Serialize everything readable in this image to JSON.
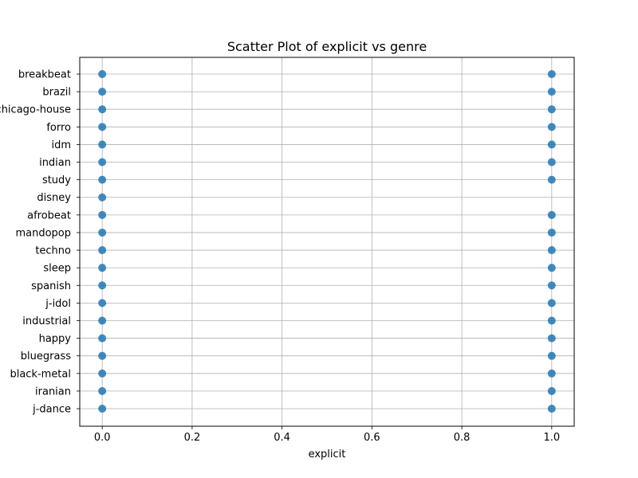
{
  "chart_data": {
    "type": "scatter",
    "title": "Scatter Plot of explicit vs genre",
    "xlabel": "explicit",
    "ylabel": "",
    "xlim": [
      -0.05,
      1.05
    ],
    "x_ticks": [
      0.0,
      0.2,
      0.4,
      0.6,
      0.8,
      1.0
    ],
    "x_tick_labels": [
      "0.0",
      "0.2",
      "0.4",
      "0.6",
      "0.8",
      "1.0"
    ],
    "categories": [
      "breakbeat",
      "brazil",
      "chicago-house",
      "forro",
      "idm",
      "indian",
      "study",
      "disney",
      "afrobeat",
      "mandopop",
      "techno",
      "sleep",
      "spanish",
      "j-idol",
      "industrial",
      "happy",
      "bluegrass",
      "black-metal",
      "iranian",
      "j-dance"
    ],
    "grid": true,
    "legend": "none",
    "point_color": "#1f77b4",
    "points": [
      {
        "x": 0,
        "y": "breakbeat"
      },
      {
        "x": 1,
        "y": "breakbeat"
      },
      {
        "x": 0,
        "y": "brazil"
      },
      {
        "x": 1,
        "y": "brazil"
      },
      {
        "x": 0,
        "y": "chicago-house"
      },
      {
        "x": 1,
        "y": "chicago-house"
      },
      {
        "x": 0,
        "y": "forro"
      },
      {
        "x": 1,
        "y": "forro"
      },
      {
        "x": 0,
        "y": "idm"
      },
      {
        "x": 1,
        "y": "idm"
      },
      {
        "x": 0,
        "y": "indian"
      },
      {
        "x": 1,
        "y": "indian"
      },
      {
        "x": 0,
        "y": "study"
      },
      {
        "x": 1,
        "y": "study"
      },
      {
        "x": 0,
        "y": "disney"
      },
      {
        "x": 0,
        "y": "afrobeat"
      },
      {
        "x": 1,
        "y": "afrobeat"
      },
      {
        "x": 0,
        "y": "mandopop"
      },
      {
        "x": 1,
        "y": "mandopop"
      },
      {
        "x": 0,
        "y": "techno"
      },
      {
        "x": 1,
        "y": "techno"
      },
      {
        "x": 0,
        "y": "sleep"
      },
      {
        "x": 1,
        "y": "sleep"
      },
      {
        "x": 0,
        "y": "spanish"
      },
      {
        "x": 1,
        "y": "spanish"
      },
      {
        "x": 0,
        "y": "j-idol"
      },
      {
        "x": 1,
        "y": "j-idol"
      },
      {
        "x": 0,
        "y": "industrial"
      },
      {
        "x": 1,
        "y": "industrial"
      },
      {
        "x": 0,
        "y": "happy"
      },
      {
        "x": 1,
        "y": "happy"
      },
      {
        "x": 0,
        "y": "bluegrass"
      },
      {
        "x": 1,
        "y": "bluegrass"
      },
      {
        "x": 0,
        "y": "black-metal"
      },
      {
        "x": 1,
        "y": "black-metal"
      },
      {
        "x": 0,
        "y": "iranian"
      },
      {
        "x": 1,
        "y": "iranian"
      },
      {
        "x": 0,
        "y": "j-dance"
      },
      {
        "x": 1,
        "y": "j-dance"
      }
    ]
  }
}
